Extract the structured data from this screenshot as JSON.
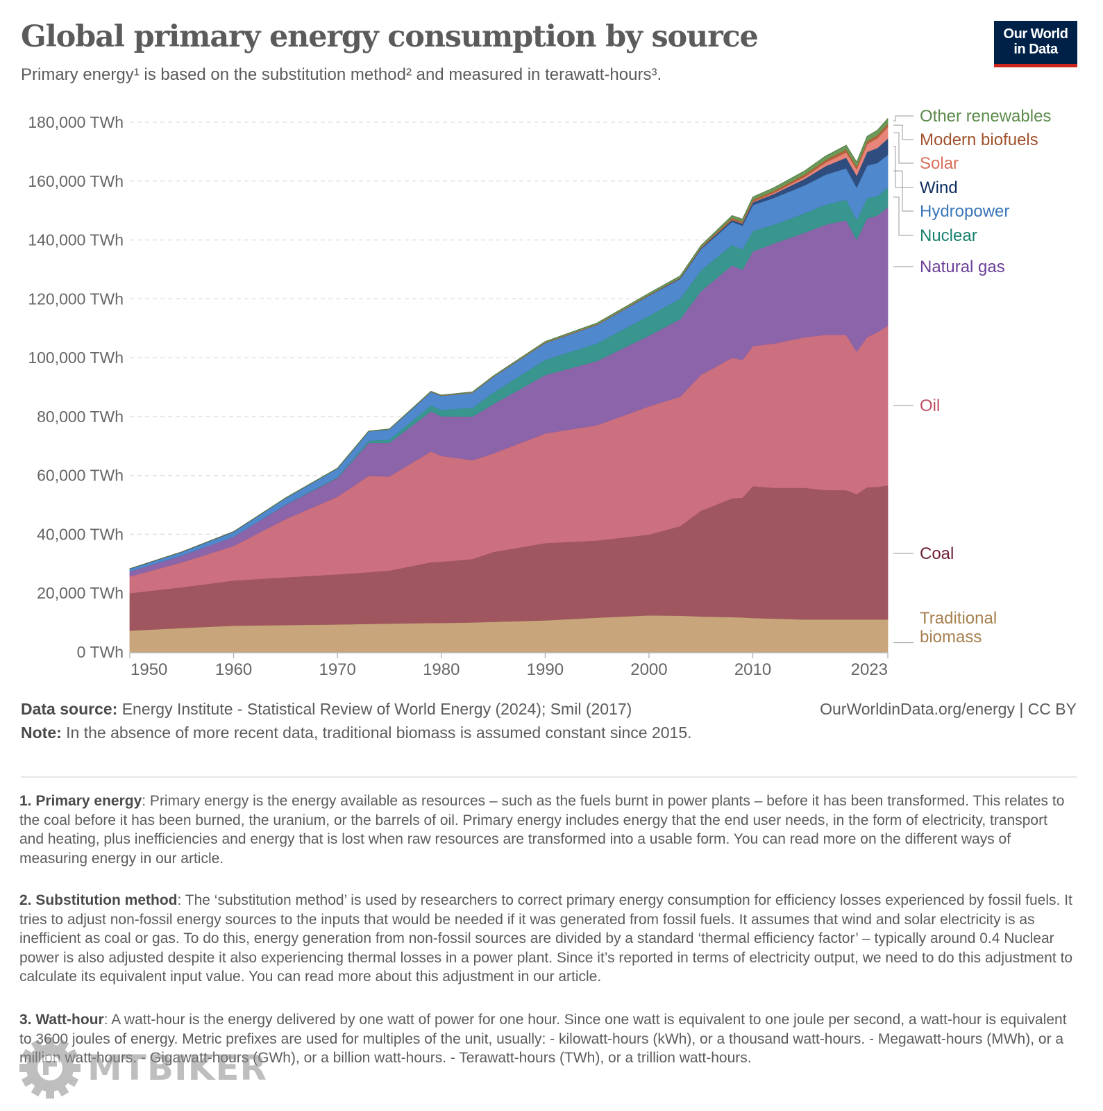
{
  "header": {
    "title": "Global primary energy consumption by source",
    "subtitle": "Primary energy¹ is based on the substitution method² and measured in terawatt-hours³.",
    "logo_line1": "Our World",
    "logo_line2": "in Data"
  },
  "chart_data": {
    "type": "area",
    "stacked": true,
    "title": "Global primary energy consumption by source",
    "xlabel": "",
    "ylabel": "",
    "unit": "TWh",
    "xlim": [
      1950,
      2023
    ],
    "ylim": [
      0,
      180000
    ],
    "grid": true,
    "legend_placement": "right",
    "x_ticks": [
      "1950",
      "1960",
      "1970",
      "1980",
      "1990",
      "2000",
      "2010",
      "2023"
    ],
    "y_ticks": [
      "0 TWh",
      "20,000 TWh",
      "40,000 TWh",
      "60,000 TWh",
      "80,000 TWh",
      "100,000 TWh",
      "120,000 TWh",
      "140,000 TWh",
      "160,000 TWh",
      "180,000 TWh"
    ],
    "x": [
      1950,
      1955,
      1960,
      1965,
      1970,
      1973,
      1975,
      1979,
      1980,
      1983,
      1985,
      1990,
      1995,
      2000,
      2003,
      2005,
      2008,
      2009,
      2010,
      2012,
      2015,
      2017,
      2019,
      2020,
      2021,
      2022,
      2023
    ],
    "series": [
      {
        "name": "Traditional biomass",
        "color": "#c8a57b",
        "label_color": "#a7804f",
        "values": [
          7300,
          8200,
          9000,
          9200,
          9400,
          9600,
          9700,
          9900,
          9900,
          10100,
          10300,
          10800,
          11700,
          12500,
          12400,
          12100,
          11900,
          11800,
          11600,
          11400,
          11100,
          11100,
          11100,
          11100,
          11100,
          11100,
          11100
        ]
      },
      {
        "name": "Coal",
        "color": "#a0565e",
        "label_color": "#6e2134",
        "values": [
          12700,
          13800,
          15300,
          16200,
          17000,
          17500,
          18000,
          20600,
          20800,
          21500,
          23700,
          26200,
          26200,
          27400,
          30400,
          35900,
          40300,
          40700,
          44800,
          44400,
          44700,
          43900,
          43900,
          42500,
          44900,
          45000,
          45500
        ]
      },
      {
        "name": "Oil",
        "color": "#cc6f7f",
        "label_color": "#c14e62",
        "values": [
          5700,
          8500,
          11800,
          19800,
          26400,
          32800,
          32000,
          37700,
          36000,
          33600,
          33500,
          37300,
          39200,
          43600,
          44000,
          46200,
          47800,
          46800,
          47600,
          49000,
          51200,
          52800,
          52800,
          48500,
          51000,
          52600,
          54300
        ]
      },
      {
        "name": "Natural gas",
        "color": "#8c64a9",
        "label_color": "#6b3f96",
        "values": [
          1700,
          2300,
          3100,
          4800,
          6400,
          11200,
          11400,
          13600,
          13400,
          14800,
          16700,
          19800,
          21800,
          24000,
          26300,
          28400,
          31400,
          30600,
          32100,
          34000,
          35500,
          37400,
          38900,
          38000,
          40300,
          39600,
          40300
        ]
      },
      {
        "name": "Nuclear",
        "color": "#39968e",
        "label_color": "#16826e",
        "values": [
          0,
          0,
          0,
          100,
          300,
          700,
          1100,
          2000,
          2200,
          3000,
          4000,
          5200,
          6000,
          6800,
          7000,
          7100,
          7000,
          6900,
          7000,
          6400,
          6600,
          6800,
          7000,
          6700,
          7000,
          6600,
          6700
        ]
      },
      {
        "name": "Hydropower",
        "color": "#4f88cd",
        "label_color": "#3b77b8",
        "values": [
          900,
          1200,
          1700,
          2200,
          2900,
          3200,
          3500,
          4600,
          4800,
          5100,
          5300,
          5700,
          6300,
          6800,
          6700,
          7200,
          7800,
          8100,
          8800,
          9100,
          9500,
          10200,
          10700,
          11100,
          11000,
          11300,
          11100
        ]
      },
      {
        "name": "Wind",
        "color": "#2f4e7f",
        "label_color": "#0e2c5c",
        "values": [
          0,
          0,
          0,
          0,
          0,
          0,
          0,
          0,
          0,
          0,
          0,
          0,
          0,
          100,
          200,
          300,
          600,
          700,
          900,
          1300,
          2200,
          2900,
          3600,
          4000,
          4600,
          5100,
          5500
        ]
      },
      {
        "name": "Solar",
        "color": "#e8857a",
        "label_color": "#d96f5b",
        "values": [
          0,
          0,
          0,
          0,
          0,
          0,
          0,
          0,
          0,
          0,
          0,
          0,
          0,
          0,
          0,
          0,
          100,
          100,
          200,
          400,
          700,
          1200,
          1800,
          2200,
          2700,
          3300,
          3900
        ]
      },
      {
        "name": "Modern biofuels",
        "color": "#b3623a",
        "label_color": "#a0522d",
        "values": [
          0,
          0,
          0,
          0,
          0,
          0,
          0,
          100,
          100,
          100,
          100,
          200,
          200,
          200,
          200,
          300,
          600,
          600,
          700,
          700,
          800,
          900,
          1000,
          900,
          1000,
          1100,
          1200
        ]
      },
      {
        "name": "Other renewables",
        "color": "#6b9a59",
        "label_color": "#5b8a4a",
        "values": [
          0,
          0,
          0,
          100,
          100,
          100,
          100,
          100,
          100,
          200,
          200,
          300,
          400,
          500,
          600,
          600,
          800,
          800,
          900,
          1000,
          1200,
          1300,
          1400,
          1500,
          1600,
          1600,
          1700
        ]
      }
    ]
  },
  "footer": {
    "source_label": "Data source:",
    "source_text": " Energy Institute - Statistical Review of World Energy (2024); Smil (2017)",
    "note_label": "Note:",
    "note_text": " In the absence of more recent data, traditional biomass is assumed constant since 2015.",
    "url_text": "OurWorldinData.org/energy | CC BY"
  },
  "footnotes": [
    {
      "label": "1. Primary energy",
      "text": ": Primary energy is the energy available as resources – such as the fuels burnt in power plants – before it has been transformed. This relates to the coal before it has been burned, the uranium, or the barrels of oil. Primary energy includes energy that the end user needs, in the form of electricity, transport and heating, plus inefficiencies and energy that is lost when raw resources are transformed into a usable form. You can read more on the different ways of measuring energy in our article."
    },
    {
      "label": "2. Substitution method",
      "text": ": The ‘substitution method’ is used by researchers to correct primary energy consumption for efficiency losses experienced by fossil fuels. It tries to adjust non-fossil energy sources to the inputs that would be needed if it was generated from fossil fuels. It assumes that wind and solar electricity is as inefficient as coal or gas. To do this, energy generation from non-fossil sources are divided by a standard ‘thermal efficiency factor’ – typically around 0.4 Nuclear power is also adjusted despite it also experiencing thermal losses in a power plant. Since it’s reported in terms of electricity output, we need to do this adjustment to calculate its equivalent input value. You can read more about this adjustment in our article."
    },
    {
      "label": "3. Watt-hour",
      "text": ": A watt-hour is the energy delivered by one watt of power for one hour. Since one watt is equivalent to one joule per second, a watt-hour is equivalent to 3600 joules of energy. Metric prefixes are used for multiples of the unit, usually: - kilowatt-hours (kWh), or a thousand watt-hours. - Megawatt-hours (MWh), or a million watt-hours. - Gigawatt-hours (GWh), or a billion watt-hours. - Terawatt-hours (TWh), or a trillion watt-hours."
    }
  ],
  "watermark": {
    "text": "MTBIKER"
  }
}
